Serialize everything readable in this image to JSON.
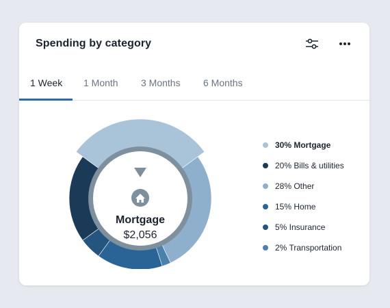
{
  "card": {
    "title": "Spending by category",
    "filter_icon": "sliders-icon",
    "more_icon": "more-horizontal-icon"
  },
  "tabs": [
    {
      "label": "1 Week",
      "active": true
    },
    {
      "label": "1 Month",
      "active": false
    },
    {
      "label": "3 Months",
      "active": false
    },
    {
      "label": "6 Months",
      "active": false
    }
  ],
  "center": {
    "icon": "home-icon",
    "label": "Mortgage",
    "value": "$2,056"
  },
  "legend": [
    {
      "text": "30% Mortgage",
      "color": "#a9c3d8",
      "selected": true
    },
    {
      "text": "20% Bills & utilities",
      "color": "#1b3a57"
    },
    {
      "text": "28% Other",
      "color": "#8eb0cc"
    },
    {
      "text": "15% Home",
      "color": "#2a6496"
    },
    {
      "text": "5% Insurance",
      "color": "#24557f"
    },
    {
      "text": "2% Transportation",
      "color": "#4c80ad"
    }
  ],
  "chart_data": {
    "type": "pie",
    "selected": "Mortgage",
    "slices": [
      {
        "name": "Mortgage",
        "percent": 30,
        "color": "#a9c3d8"
      },
      {
        "name": "Other",
        "percent": 28,
        "color": "#8eb0cc"
      },
      {
        "name": "Transportation",
        "percent": 2,
        "color": "#4c80ad"
      },
      {
        "name": "Home",
        "percent": 15,
        "color": "#2a6496"
      },
      {
        "name": "Insurance",
        "percent": 5,
        "color": "#24557f"
      },
      {
        "name": "Bills & utilities",
        "percent": 20,
        "color": "#1b3a57"
      }
    ]
  }
}
